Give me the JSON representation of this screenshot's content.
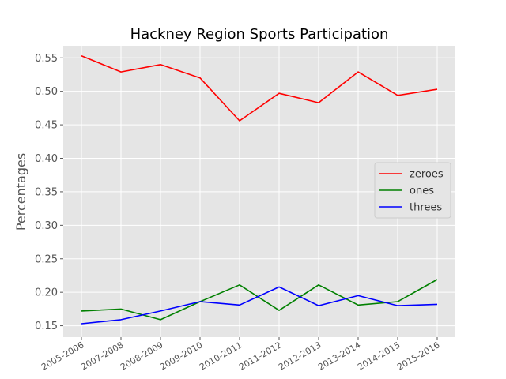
{
  "chart_data": {
    "type": "line",
    "title": "Hackney Region Sports Participation",
    "xlabel": "",
    "ylabel": "Percentages",
    "categories": [
      "2005-2006",
      "2007-2008",
      "2008-2009",
      "2009-2010",
      "2010-2011",
      "2011-2012",
      "2012-2013",
      "2013-2014",
      "2014-2015",
      "2015-2016"
    ],
    "ylim": [
      0.133,
      0.568
    ],
    "yticks": [
      "0.15",
      "0.20",
      "0.25",
      "0.30",
      "0.35",
      "0.40",
      "0.45",
      "0.50",
      "0.55"
    ],
    "grid": true,
    "legend_position": "center-right",
    "series": [
      {
        "name": "zeroes",
        "color": "#ff0000",
        "values": [
          0.553,
          0.529,
          0.54,
          0.52,
          0.456,
          0.497,
          0.483,
          0.529,
          0.494,
          0.503
        ]
      },
      {
        "name": "ones",
        "color": "#008000",
        "values": [
          0.172,
          0.175,
          0.159,
          0.186,
          0.211,
          0.173,
          0.211,
          0.181,
          0.186,
          0.219
        ]
      },
      {
        "name": "threes",
        "color": "#0000ff",
        "values": [
          0.153,
          0.159,
          0.172,
          0.186,
          0.181,
          0.208,
          0.18,
          0.195,
          0.18,
          0.182
        ]
      }
    ]
  }
}
